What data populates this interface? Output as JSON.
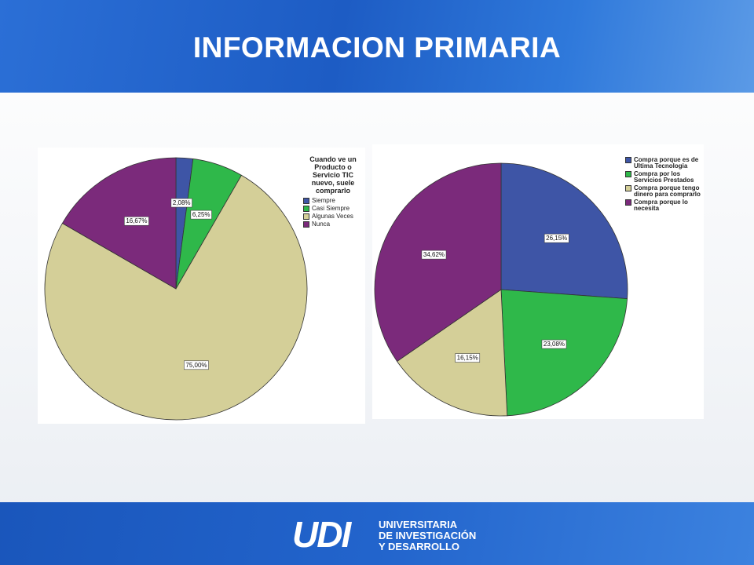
{
  "slide_title": "INFORMACION PRIMARIA",
  "logo": {
    "mark": "UDI",
    "lines": [
      "UNIVERSITARIA",
      "DE INVESTIGACIÓN",
      "Y DESARROLLO"
    ]
  },
  "chart_data": [
    {
      "type": "pie",
      "legend_title": "Cuando ve un Producto o Servicio TIC nuevo, suele comprarlo",
      "categories": [
        "Siempre",
        "Casi Siempre",
        "Algunas Veces",
        "Nunca"
      ],
      "values": [
        2.08,
        6.25,
        75.0,
        16.67
      ],
      "value_labels": [
        "2,08%",
        "6,25%",
        "75,00%",
        "16,67%"
      ],
      "colors": [
        "#3e55a6",
        "#2fb84a",
        "#d4cf98",
        "#7b2a7b"
      ]
    },
    {
      "type": "pie",
      "categories": [
        "Compra porque es de Ultima Tecnologia",
        "Compra por los Servicios Prestados",
        "Compra porque tengo dinero para comprarlo",
        "Compra porque lo necesita"
      ],
      "values": [
        26.15,
        23.08,
        16.15,
        34.62
      ],
      "value_labels": [
        "26,15%",
        "23,08%",
        "16,15%",
        "34,62%"
      ],
      "colors": [
        "#3e55a6",
        "#2fb84a",
        "#d4cf98",
        "#7b2a7b"
      ]
    }
  ]
}
